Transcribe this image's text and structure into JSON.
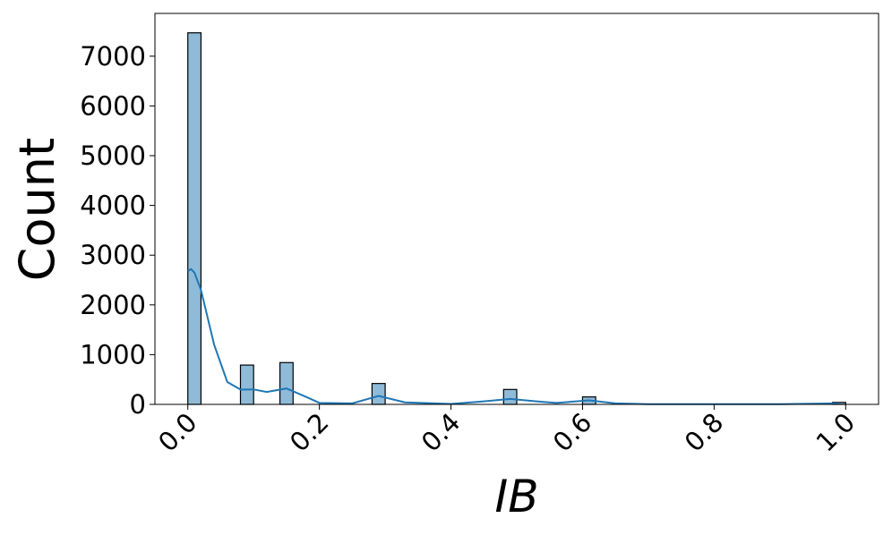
{
  "chart_data": {
    "type": "histogram",
    "xlabel": "IB",
    "ylabel": "Count",
    "bins": [
      0,
      0.02,
      0.04,
      0.06,
      0.08,
      0.1,
      0.12,
      0.14,
      0.16,
      0.18,
      0.2,
      0.22,
      0.24,
      0.26,
      0.28,
      0.3,
      0.32,
      0.34,
      0.36,
      0.38,
      0.4,
      0.42,
      0.44,
      0.46,
      0.48,
      0.5,
      0.52,
      0.54,
      0.56,
      0.58,
      0.6,
      0.62,
      0.64,
      0.66,
      0.68,
      0.7,
      0.72,
      0.74,
      0.76,
      0.78,
      0.8,
      0.82,
      0.84,
      0.86,
      0.88,
      0.9,
      0.92,
      0.94,
      0.96,
      0.98,
      1.0
    ],
    "counts": [
      7470,
      0,
      0,
      0,
      790,
      0,
      0,
      840,
      0,
      0,
      0,
      0,
      0,
      0,
      420,
      0,
      0,
      0,
      0,
      0,
      0,
      0,
      0,
      0,
      300,
      0,
      0,
      0,
      0,
      0,
      150,
      0,
      0,
      0,
      0,
      0,
      0,
      0,
      0,
      0,
      0,
      0,
      0,
      0,
      0,
      0,
      0,
      0,
      0,
      40
    ],
    "color": "#8fbbd9",
    "edgecolor": "#000000",
    "kde": {
      "color": "#1f77b4",
      "x": [
        0,
        0.005,
        0.01,
        0.02,
        0.04,
        0.06,
        0.08,
        0.1,
        0.12,
        0.15,
        0.18,
        0.2,
        0.25,
        0.29,
        0.33,
        0.4,
        0.45,
        0.49,
        0.53,
        0.56,
        0.61,
        0.65,
        0.7,
        0.8,
        0.9,
        0.99
      ],
      "values": [
        2680,
        2720,
        2650,
        2300,
        1200,
        450,
        300,
        300,
        250,
        320,
        150,
        30,
        20,
        170,
        40,
        10,
        60,
        110,
        60,
        30,
        80,
        20,
        5,
        5,
        5,
        20
      ]
    },
    "xlim": [
      -0.05,
      1.05
    ],
    "xticks": [
      {
        "value": 0,
        "label": "0.0"
      },
      {
        "value": 0.2,
        "label": "0.2"
      },
      {
        "value": 0.4,
        "label": "0.4"
      },
      {
        "value": 0.6,
        "label": "0.6"
      },
      {
        "value": 0.8,
        "label": "0.8"
      },
      {
        "value": 1.0,
        "label": "1.0"
      }
    ],
    "ylim": [
      0,
      7860
    ],
    "yticks": [
      0,
      1000,
      2000,
      3000,
      4000,
      5000,
      6000,
      7000
    ]
  }
}
